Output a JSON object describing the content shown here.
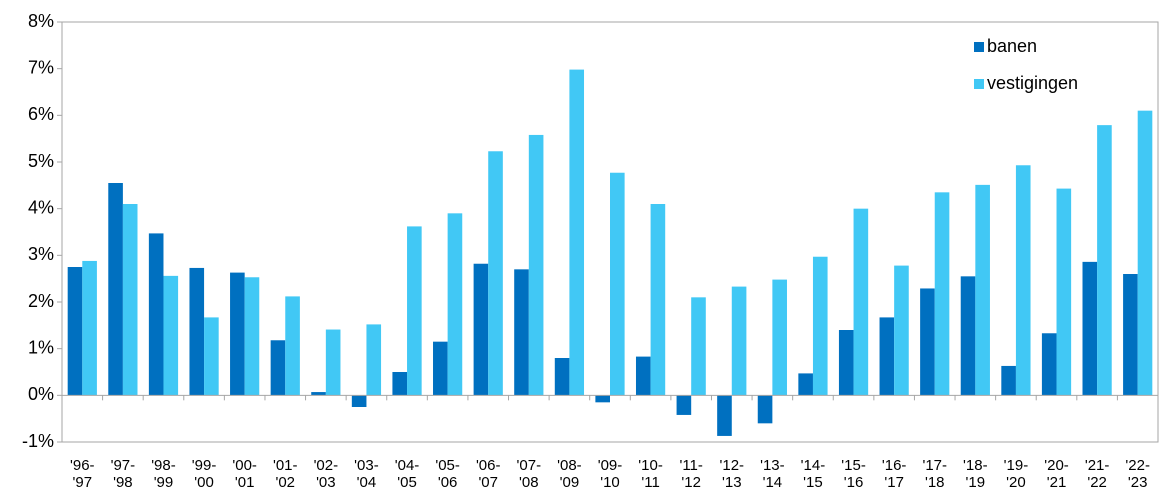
{
  "chart_data": {
    "type": "bar",
    "categories": [
      "'96- '97",
      "'97- '98",
      "'98- '99",
      "'99- '00",
      "'00- '01",
      "'01- '02",
      "'02- '03",
      "'03- '04",
      "'04- '05",
      "'05- '06",
      "'06- '07",
      "'07- '08",
      "'08- '09",
      "'09- '10",
      "'10- '11",
      "'11- '12",
      "'12- '13",
      "'13- '14",
      "'14- '15",
      "'15- '16",
      "'16- '17",
      "'17- '18",
      "'18- '19",
      "'19- '20",
      "'20- '21",
      "'21- '22",
      "'22- '23"
    ],
    "series": [
      {
        "name": "banen",
        "color": "#0070c0",
        "values": [
          2.75,
          4.55,
          3.47,
          2.73,
          2.63,
          1.18,
          0.07,
          -0.25,
          0.5,
          1.15,
          2.82,
          2.7,
          0.8,
          -0.15,
          0.83,
          -0.42,
          -0.87,
          -0.6,
          0.47,
          1.4,
          1.67,
          2.29,
          2.55,
          0.63,
          1.33,
          2.86,
          2.6
        ]
      },
      {
        "name": "vestigingen",
        "color": "#41c8f5",
        "values": [
          2.88,
          4.1,
          2.56,
          1.67,
          2.53,
          2.12,
          1.41,
          1.52,
          3.62,
          3.9,
          5.23,
          5.58,
          6.98,
          4.77,
          4.1,
          2.1,
          2.33,
          2.48,
          2.97,
          4.0,
          2.78,
          4.35,
          4.51,
          4.93,
          4.43,
          5.79,
          6.1
        ]
      }
    ],
    "ylim": [
      -1,
      8
    ],
    "yticks": [
      {
        "value": -1,
        "label": "-1%"
      },
      {
        "value": 0,
        "label": "0%"
      },
      {
        "value": 1,
        "label": "1%"
      },
      {
        "value": 2,
        "label": "2%"
      },
      {
        "value": 3,
        "label": "3%"
      },
      {
        "value": 4,
        "label": "4%"
      },
      {
        "value": 5,
        "label": "5%"
      },
      {
        "value": 6,
        "label": "6%"
      },
      {
        "value": 7,
        "label": "7%"
      },
      {
        "value": 8,
        "label": "8%"
      }
    ],
    "legend": "top-right",
    "grid": false
  }
}
